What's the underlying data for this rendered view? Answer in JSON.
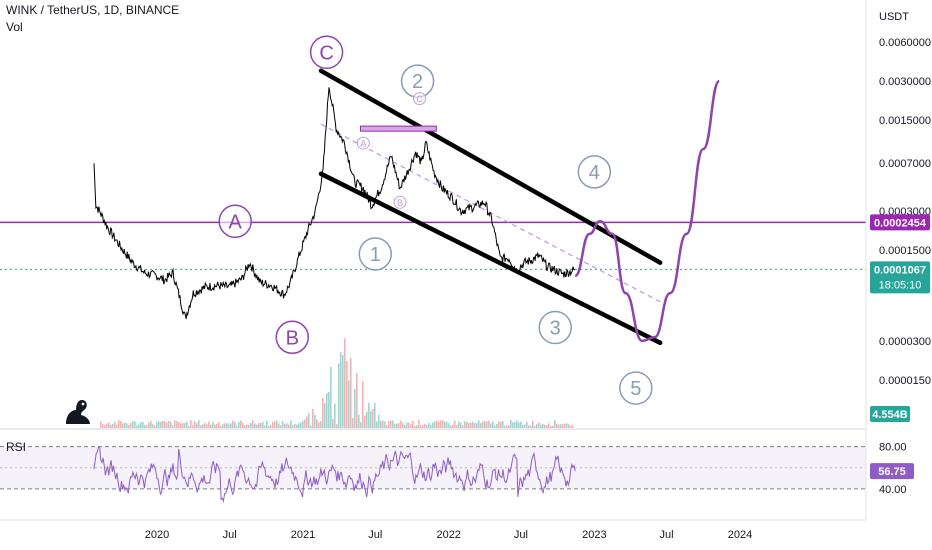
{
  "header": {
    "symbol_line": "WINK / TetherUS, 1D, BINANCE",
    "vol_label": "Vol",
    "rsi_label": "RSI"
  },
  "colors": {
    "price_line": "#000000",
    "wave_purple": "#8e44ad",
    "wave_purple_light": "#c59ce0",
    "wave_blue_gray": "#8a9bb6",
    "rsi_line": "#8e5cc4",
    "current_price_bg": "#26a69a",
    "level_line": "#9c27b0",
    "volume_bar": "#26a69a"
  },
  "chart_data": [
    {
      "type": "line",
      "title": "WINK / TetherUS, 1D, BINANCE",
      "yscale": "log",
      "y_unit": "USDT",
      "x_tick_labels": [
        "2020",
        "Jul",
        "2021",
        "Jul",
        "2022",
        "Jul",
        "2023",
        "Jul",
        "2024"
      ],
      "y_tick_labels": [
        "0.0060000",
        "0.0030000",
        "0.0015000",
        "0.0007000",
        "0.0003000",
        "0.0001500",
        "0.0000300",
        "0.0000150"
      ],
      "price_path": [
        [
          "2019-07-27",
          0.0007
        ],
        [
          "2019-08-01",
          0.00033
        ],
        [
          "2019-08-10",
          0.0003
        ],
        [
          "2019-09-01",
          0.00022
        ],
        [
          "2019-10-01",
          0.00016
        ],
        [
          "2019-11-01",
          0.00012
        ],
        [
          "2019-12-01",
          0.0001
        ],
        [
          "2020-01-01",
          9.5e-05
        ],
        [
          "2020-01-20",
          8.8e-05
        ],
        [
          "2020-02-10",
          0.0001
        ],
        [
          "2020-03-12",
          4.5e-05
        ],
        [
          "2020-04-01",
          7e-05
        ],
        [
          "2020-05-01",
          7.8e-05
        ],
        [
          "2020-06-01",
          8e-05
        ],
        [
          "2020-07-01",
          7.8e-05
        ],
        [
          "2020-08-01",
          9e-05
        ],
        [
          "2020-08-20",
          0.00012
        ],
        [
          "2020-09-15",
          8.5e-05
        ],
        [
          "2020-10-15",
          8e-05
        ],
        [
          "2020-11-15",
          6.8e-05
        ],
        [
          "2020-12-01",
          8.5e-05
        ],
        [
          "2020-12-20",
          0.00013
        ],
        [
          "2021-01-10",
          0.0002
        ],
        [
          "2021-02-01",
          0.0003
        ],
        [
          "2021-02-20",
          0.0006
        ],
        [
          "2021-03-07",
          0.0028
        ],
        [
          "2021-03-25",
          0.0013
        ],
        [
          "2021-04-15",
          0.001
        ],
        [
          "2021-05-10",
          0.0005
        ],
        [
          "2021-06-01",
          0.00045
        ],
        [
          "2021-06-22",
          0.00033
        ],
        [
          "2021-07-15",
          0.00045
        ],
        [
          "2021-08-10",
          0.0008
        ],
        [
          "2021-09-01",
          0.00045
        ],
        [
          "2021-09-25",
          0.00065
        ],
        [
          "2021-10-10",
          0.00085
        ],
        [
          "2021-10-25",
          0.0007
        ],
        [
          "2021-11-05",
          0.001
        ],
        [
          "2021-11-25",
          0.0006
        ],
        [
          "2021-12-15",
          0.00045
        ],
        [
          "2022-01-10",
          0.00038
        ],
        [
          "2022-02-01",
          0.0003
        ],
        [
          "2022-03-01",
          0.00032
        ],
        [
          "2022-04-01",
          0.00035
        ],
        [
          "2022-04-20",
          0.00025
        ],
        [
          "2022-05-10",
          0.00013
        ],
        [
          "2022-06-01",
          0.00013
        ],
        [
          "2022-06-20",
          0.000105
        ],
        [
          "2022-07-10",
          0.00012
        ],
        [
          "2022-07-25",
          0.000125
        ],
        [
          "2022-08-15",
          0.000135
        ],
        [
          "2022-09-05",
          0.000112
        ],
        [
          "2022-09-25",
          0.000105
        ],
        [
          "2022-10-15",
          9.8e-05
        ],
        [
          "2022-10-30",
          0.000102
        ],
        [
          "2022-11-14",
          0.0001067
        ]
      ],
      "projection_path": [
        [
          "2022-11-14",
          9.5e-05
        ],
        [
          "2022-12-20",
          0.0002
        ],
        [
          "2023-01-15",
          0.00025
        ],
        [
          "2023-02-15",
          0.0002
        ],
        [
          "2023-03-20",
          7e-05
        ],
        [
          "2023-05-01",
          3e-05
        ],
        [
          "2023-06-01",
          3.2e-05
        ],
        [
          "2023-07-10",
          7e-05
        ],
        [
          "2023-08-20",
          0.0002
        ],
        [
          "2023-10-01",
          0.0009
        ],
        [
          "2023-11-10",
          0.003
        ]
      ],
      "channel": {
        "upper": [
          [
            "2021-02-15",
            0.0036
          ],
          [
            "2023-06-15",
            0.00012
          ]
        ],
        "lower": [
          [
            "2021-02-15",
            0.00058
          ],
          [
            "2023-06-15",
            2.9e-05
          ]
        ],
        "mid": [
          [
            "2021-02-15",
            0.0014
          ],
          [
            "2023-06-15",
            6e-05
          ]
        ]
      },
      "level_line": {
        "value": 0.0002454,
        "label": "0.0002454"
      },
      "current_price": {
        "value": 0.0001067,
        "label": "0.0001067",
        "countdown": "18:05:10"
      },
      "volume_label": "4.554B",
      "wave_labels": [
        {
          "text": "A",
          "date": "2020-07-15",
          "price": 0.00025,
          "color": "#8e44ad"
        },
        {
          "text": "B",
          "date": "2020-12-05",
          "price": 3.2e-05,
          "color": "#8e44ad"
        },
        {
          "text": "C",
          "date": "2021-03-01",
          "price": 0.005,
          "color": "#8e44ad"
        },
        {
          "text": "1",
          "date": "2021-07-01",
          "price": 0.00014,
          "color": "#8a9bb6"
        },
        {
          "text": "2",
          "date": "2021-10-15",
          "price": 0.003,
          "color": "#8a9bb6"
        },
        {
          "text": "3",
          "date": "2022-09-25",
          "price": 3.8e-05,
          "color": "#8a9bb6"
        },
        {
          "text": "4",
          "date": "2023-01-01",
          "price": 0.0006,
          "color": "#8a9bb6"
        },
        {
          "text": "5",
          "date": "2023-04-15",
          "price": 1.3e-05,
          "color": "#8a9bb6"
        },
        {
          "text": "A",
          "date": "2021-06-01",
          "price": 0.001,
          "color": "#c59ce0"
        },
        {
          "text": "B",
          "date": "2021-09-01",
          "price": 0.00035,
          "color": "#c59ce0"
        },
        {
          "text": "C",
          "date": "2021-10-20",
          "price": 0.0022,
          "color": "#c59ce0"
        }
      ]
    },
    {
      "type": "line",
      "title": "RSI",
      "y_tick_labels": [
        "80.00",
        "40.00"
      ],
      "ylim": [
        20,
        90
      ],
      "current_value": 56.75,
      "current_label": "56.75",
      "date_range": [
        "2019-07-27",
        "2022-11-14"
      ]
    }
  ]
}
